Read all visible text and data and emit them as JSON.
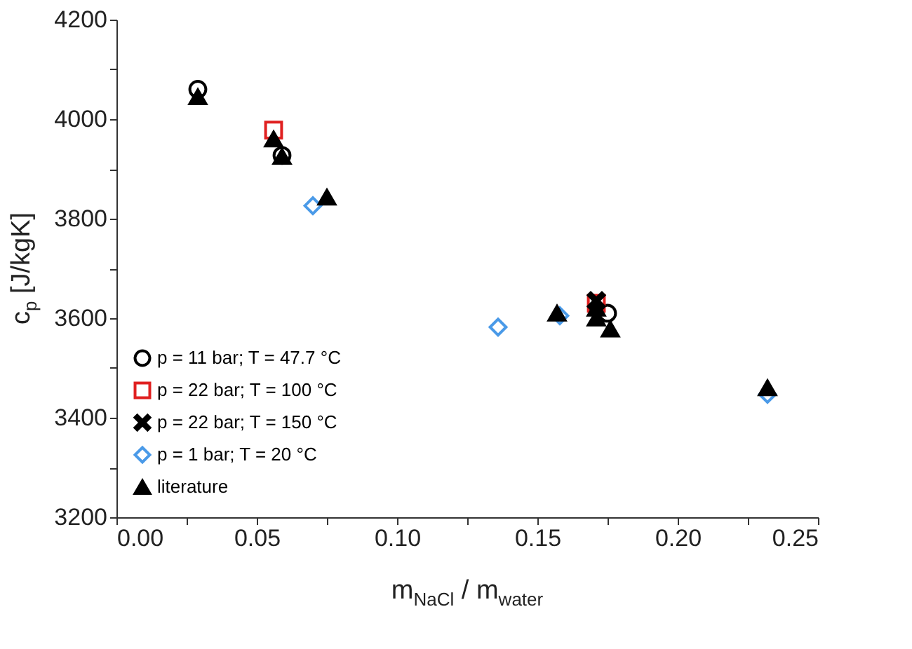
{
  "chart_data": {
    "type": "scatter",
    "xlabel": "m$_{NaCl}$ / m$_{water}$",
    "ylabel": "c$_{p}$ [J/kgK]",
    "xlim": [
      0,
      0.25
    ],
    "ylim": [
      3200,
      4200
    ],
    "xticks": [
      {
        "value": 0,
        "label": "0.00"
      },
      {
        "value": 0.025,
        "label": null
      },
      {
        "value": 0.05,
        "label": "0.05"
      },
      {
        "value": 0.075,
        "label": null
      },
      {
        "value": 0.1,
        "label": "0.10"
      },
      {
        "value": 0.125,
        "label": null
      },
      {
        "value": 0.15,
        "label": "0.15"
      },
      {
        "value": 0.175,
        "label": null
      },
      {
        "value": 0.2,
        "label": "0.20"
      },
      {
        "value": 0.225,
        "label": null
      },
      {
        "value": 0.25,
        "label": "0.25"
      }
    ],
    "yticks": [
      3200,
      {
        "value": 3300,
        "label": null
      },
      3400,
      {
        "value": 3500,
        "label": null
      },
      3600,
      {
        "value": 3700,
        "label": null
      },
      3800,
      {
        "value": 3900,
        "label": null
      },
      4000,
      {
        "value": 4100,
        "label": null
      },
      4200
    ],
    "grid": false,
    "legend": "bottom left",
    "series": [
      {
        "name": "p = 11 bar; T = 47.7 °C",
        "color": "#000000",
        "marker": "circle",
        "x": [
          0.029,
          0.059,
          0.175
        ],
        "values": [
          4060,
          3927,
          3610
        ]
      },
      {
        "name": "p = 22 bar; T = 100 °C",
        "color": "#e02020",
        "marker": "square",
        "x": [
          0.056,
          0.171
        ],
        "values": [
          3978,
          3630
        ]
      },
      {
        "name": "p = 22 bar; T = 150 °C",
        "color": "#000000",
        "marker": "cross",
        "x": [
          0.171
        ],
        "values": [
          3635
        ]
      },
      {
        "name": "p =  1 bar; T =   20 °C",
        "color": "#4a9ae8",
        "marker": "diamond",
        "x": [
          0.07,
          0.136,
          0.158,
          0.232
        ],
        "values": [
          3826,
          3582,
          3605,
          3447
        ]
      },
      {
        "name": "literature",
        "color": "#000000",
        "marker": "triangle",
        "x": [
          0.029,
          0.056,
          0.059,
          0.075,
          0.157,
          0.171,
          0.171,
          0.176,
          0.232
        ],
        "values": [
          4045,
          3960,
          3925,
          3843,
          3610,
          3620,
          3600,
          3578,
          3460
        ]
      }
    ]
  }
}
